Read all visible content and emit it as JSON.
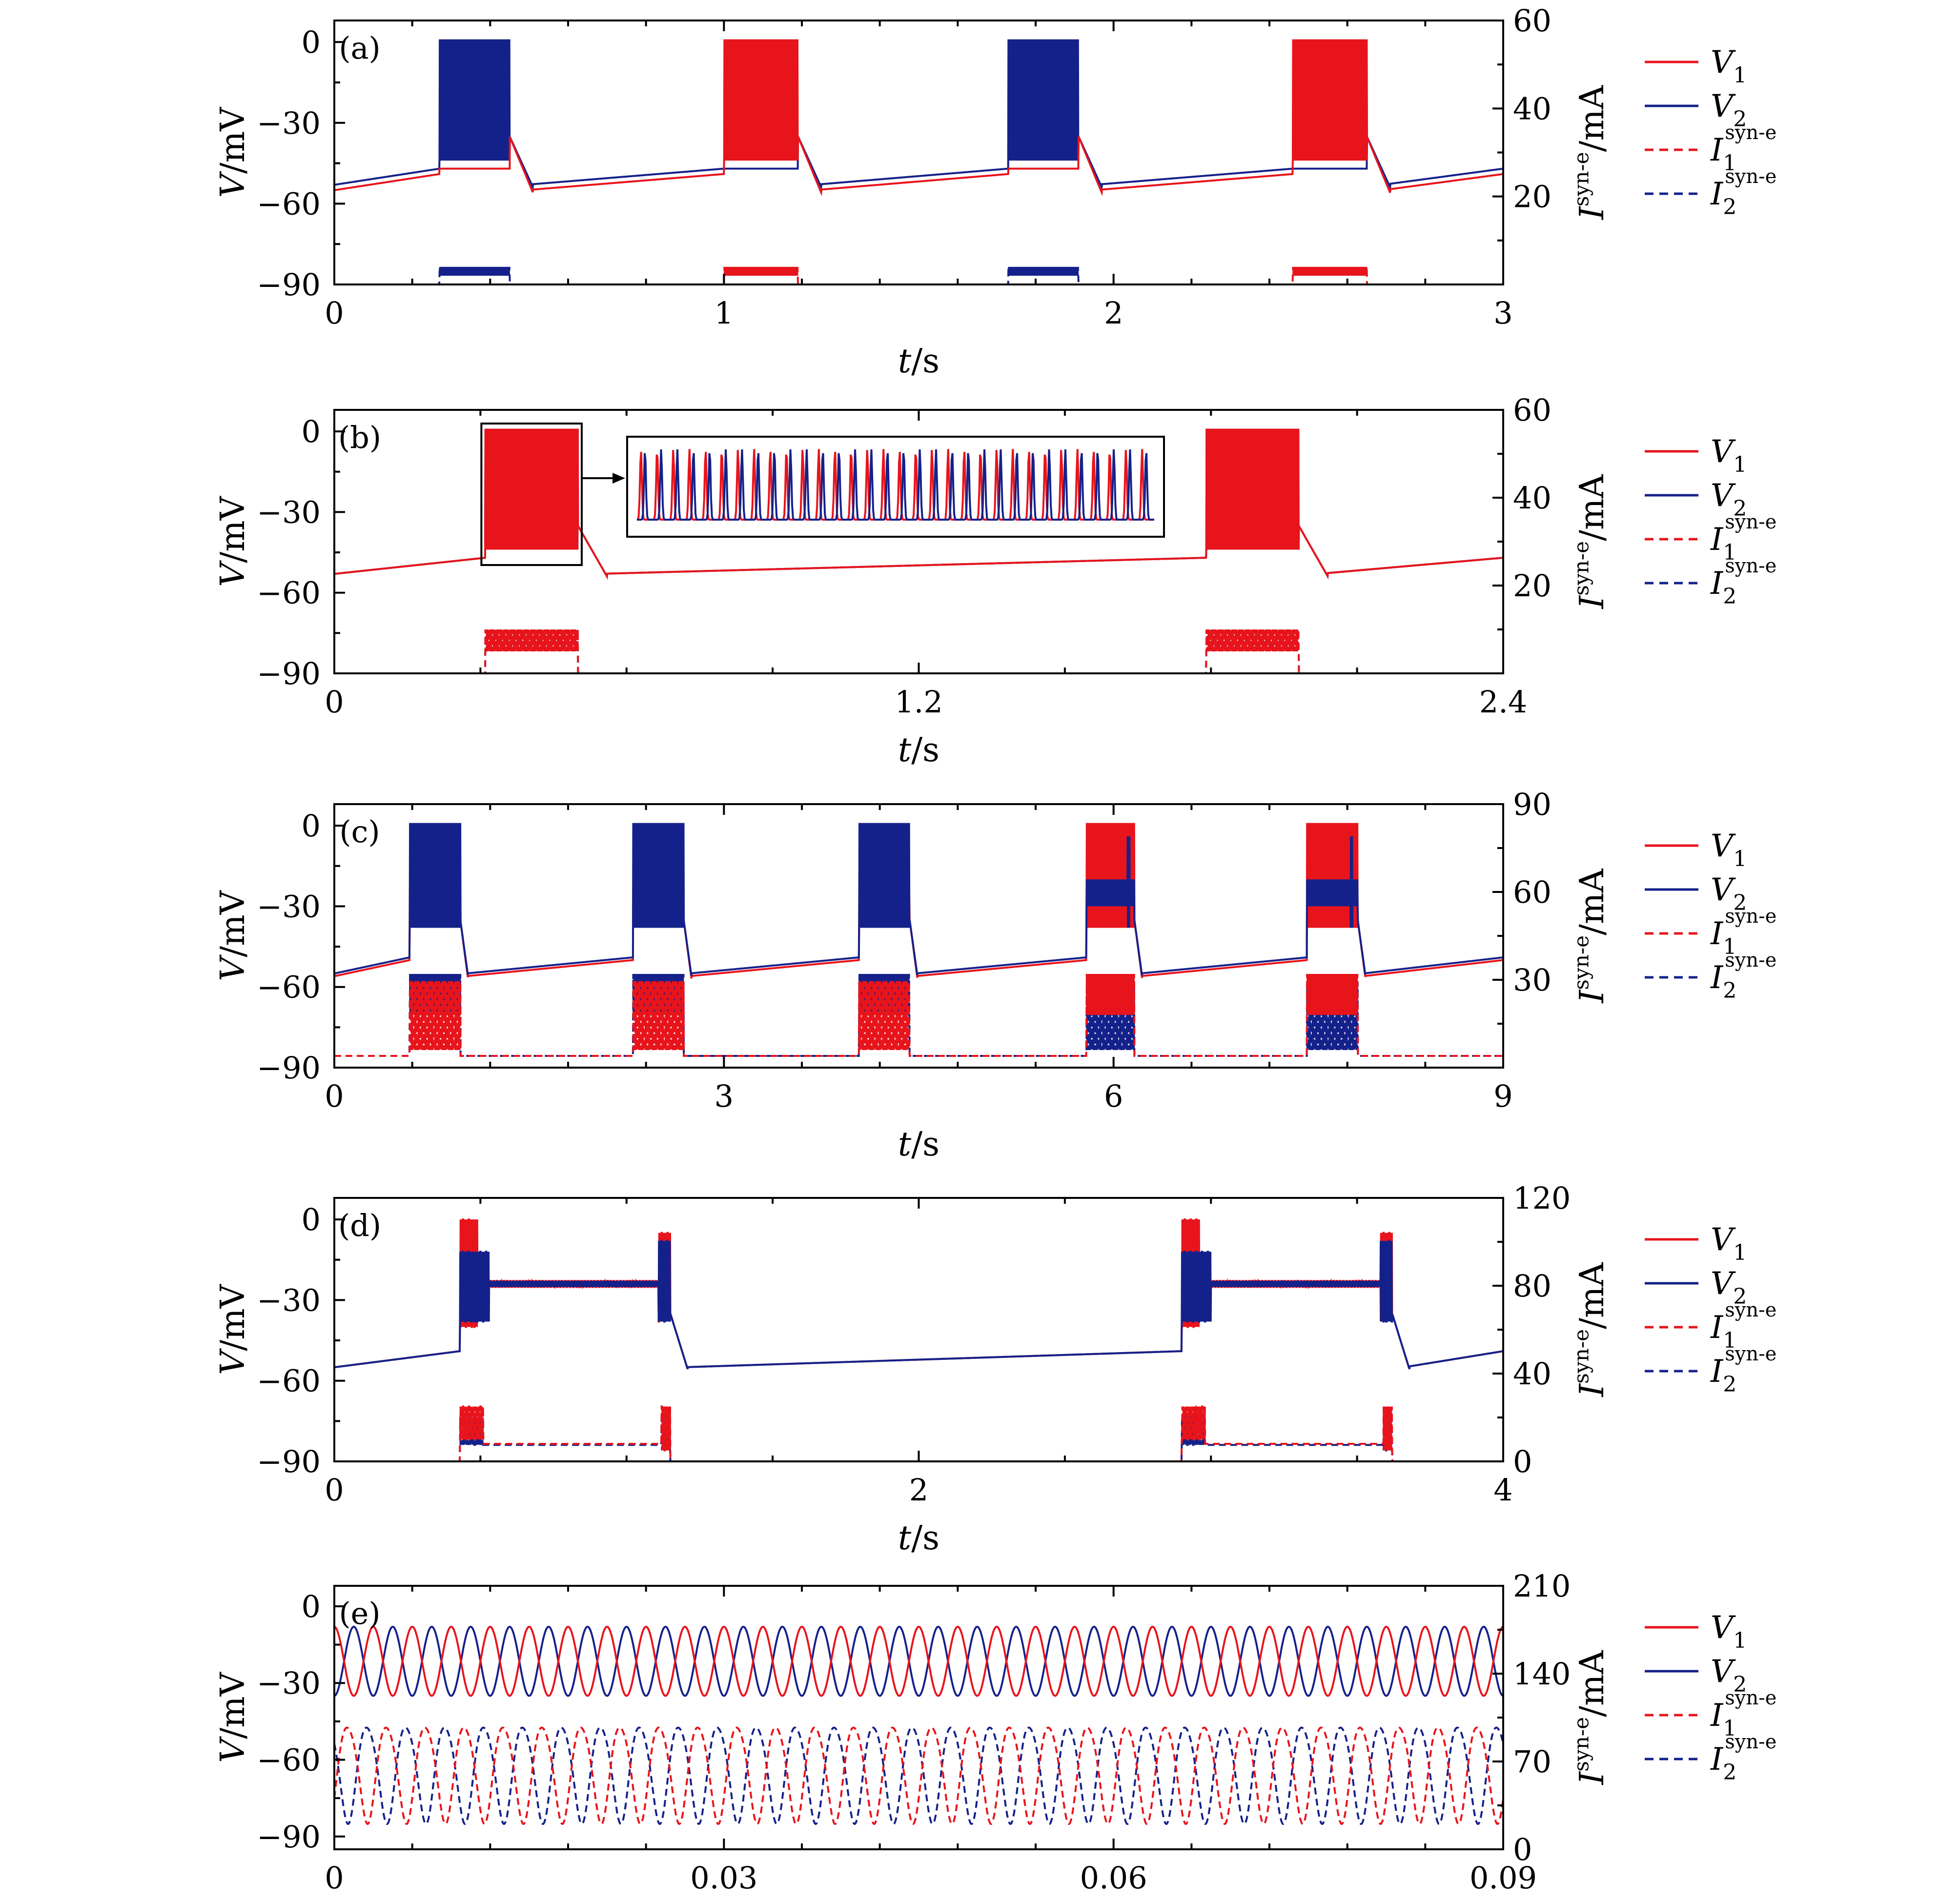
{
  "figure": {
    "colors": {
      "v1": "#e8141c",
      "v2": "#15218a",
      "axis": "#000000"
    },
    "legend": [
      {
        "id": "v1",
        "main": "V",
        "sub": "1",
        "sup": "",
        "dashed": false,
        "color": "#e8141c"
      },
      {
        "id": "v2",
        "main": "V",
        "sub": "2",
        "sup": "",
        "dashed": false,
        "color": "#15218a"
      },
      {
        "id": "i1",
        "main": "I",
        "sub": "1",
        "sup": "syn-e",
        "dashed": true,
        "color": "#e8141c"
      },
      {
        "id": "i2",
        "main": "I",
        "sub": "2",
        "sup": "syn-e",
        "dashed": true,
        "color": "#15218a"
      }
    ],
    "ylabel_left": {
      "main": "V",
      "unit": "/mV"
    },
    "ylabel_right": {
      "main": "I",
      "sup": "syn-e",
      "unit": "/mA"
    },
    "xlabel": {
      "main": "t",
      "unit": "/s"
    }
  },
  "chart_data": [
    {
      "type": "line",
      "panel_label": "(a)",
      "xlim": [
        0,
        3
      ],
      "ylim": [
        -90,
        8
      ],
      "y2lim": [
        0,
        60
      ],
      "x_ticks": [
        "0",
        "1",
        "2",
        "3"
      ],
      "y_ticks": [
        -90,
        -60,
        -30,
        0
      ],
      "y2_ticks": [
        20,
        40,
        60
      ],
      "bursts": [
        {
          "start": 0.27,
          "end": 0.45,
          "leader": "v2"
        },
        {
          "start": 1.0,
          "end": 1.19,
          "leader": "v1"
        },
        {
          "start": 1.73,
          "end": 1.91,
          "leader": "v2"
        },
        {
          "start": 2.46,
          "end": 2.65,
          "leader": "v1"
        }
      ],
      "baseline_v1": -52,
      "baseline_v2": -50,
      "current_baseline": 0,
      "current_peak": 4
    },
    {
      "type": "line",
      "panel_label": "(b)",
      "xlim": [
        0,
        2.4
      ],
      "ylim": [
        -90,
        8
      ],
      "y2lim": [
        0,
        60
      ],
      "x_ticks": [
        "0",
        "1.2",
        "2.4"
      ],
      "y_ticks": [
        -90,
        -60,
        -30,
        0
      ],
      "y2_ticks": [
        20,
        40,
        60
      ],
      "bursts": [
        {
          "start": 0.31,
          "end": 0.5,
          "leader": "both"
        },
        {
          "start": 1.79,
          "end": 1.98,
          "leader": "both"
        }
      ],
      "baseline_v1": -50,
      "baseline_v2": -50,
      "current_baseline": 0,
      "current_peak": 10,
      "inset": {
        "description_free": true,
        "spike_count": 32
      }
    },
    {
      "type": "line",
      "panel_label": "(c)",
      "xlim": [
        0,
        9
      ],
      "ylim": [
        -90,
        8
      ],
      "y2lim": [
        0,
        90
      ],
      "x_ticks": [
        "0",
        "3",
        "6",
        "9"
      ],
      "y_ticks": [
        -90,
        -60,
        -30,
        0
      ],
      "y2_ticks": [
        30,
        60,
        90
      ],
      "bursts": [
        {
          "start": 0.58,
          "end": 0.97,
          "leader": "v2"
        },
        {
          "start": 2.3,
          "end": 2.69,
          "leader": "v2"
        },
        {
          "start": 4.04,
          "end": 4.43,
          "leader": "v2"
        },
        {
          "start": 5.79,
          "end": 6.16,
          "leader": "v1"
        },
        {
          "start": 7.49,
          "end": 7.88,
          "leader": "v1"
        }
      ],
      "baseline_v1": -53,
      "baseline_v2": -52,
      "current_baseline": 4,
      "current_peak": 28
    },
    {
      "type": "line",
      "panel_label": "(d)",
      "xlim": [
        0,
        4
      ],
      "ylim": [
        -90,
        8
      ],
      "y2lim": [
        0,
        120
      ],
      "x_ticks": [
        "0",
        "2",
        "4"
      ],
      "y_ticks": [
        -90,
        -60,
        -30,
        0
      ],
      "y2_ticks": [
        0,
        40,
        80,
        120
      ],
      "bursts": [
        {
          "start": 0.43,
          "end": 1.15,
          "leader": "both"
        },
        {
          "start": 2.9,
          "end": 3.62,
          "leader": "both"
        }
      ],
      "plateau_v": -24,
      "baseline_v1": -52,
      "baseline_v2": -52,
      "current_baseline": 0,
      "current_plateau": 8,
      "current_peak": 25
    },
    {
      "type": "line",
      "panel_label": "(e)",
      "xlim": [
        0,
        0.09
      ],
      "ylim": [
        -95,
        8
      ],
      "y2lim": [
        0,
        210
      ],
      "x_ticks": [
        "0",
        "0.03",
        "0.06",
        "0.09"
      ],
      "y_ticks": [
        -90,
        -60,
        -30,
        0
      ],
      "y2_ticks": [
        0,
        70,
        140,
        210
      ],
      "v_range": [
        -35,
        -8
      ],
      "period": 0.003,
      "i_range": [
        20,
        105
      ]
    }
  ]
}
